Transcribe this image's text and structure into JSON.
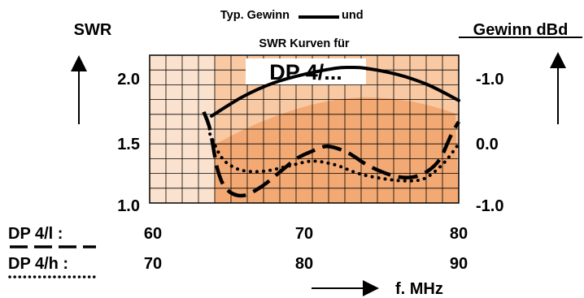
{
  "chart_data": {
    "type": "line",
    "title_line1": "Typ. Gewinn",
    "title_und": "und",
    "title_line2": "SWR Kurven für",
    "model_label": "DP 4/...",
    "y_left_label": "SWR",
    "y_right_label": "Gewinn dBd",
    "x_label": "f. MHz",
    "y_left_ticks": [
      "2.0",
      "1.5",
      "1.0"
    ],
    "y_right_ticks": [
      "-1.0",
      "0.0",
      "-1.0"
    ],
    "x_rows": [
      {
        "name": "DP 4/l  :",
        "ticks": [
          "60",
          "70",
          "80"
        ],
        "style": "dashed"
      },
      {
        "name": "DP 4/h :",
        "ticks": [
          "70",
          "80",
          "90"
        ],
        "style": "dotted"
      }
    ],
    "x_range": [
      60,
      80
    ],
    "ylim_left": [
      1.0,
      2.2
    ],
    "ylim_right": [
      -1.0,
      0.7
    ],
    "series": [
      {
        "style": "solid",
        "axis": "right",
        "x": [
          64,
          66,
          68,
          70,
          72,
          73,
          74,
          76,
          78,
          80
        ],
        "y": [
          0.0,
          0.22,
          0.38,
          0.48,
          0.55,
          0.56,
          0.55,
          0.48,
          0.36,
          0.18
        ]
      },
      {
        "style": "dashed",
        "axis": "left",
        "x": [
          63.5,
          63.9,
          64.4,
          65.0,
          66.0,
          67.2,
          68.5,
          69.5,
          70.5,
          71.5,
          72.8,
          74.2,
          75.8,
          77.0,
          78.0,
          78.8,
          79.5,
          80.0
        ],
        "y": [
          1.74,
          1.6,
          1.27,
          1.11,
          1.06,
          1.13,
          1.26,
          1.36,
          1.42,
          1.46,
          1.41,
          1.3,
          1.22,
          1.21,
          1.26,
          1.36,
          1.55,
          1.66
        ]
      },
      {
        "style": "dotted",
        "axis": "left",
        "x": [
          63.9,
          64.6,
          65.3,
          66.2,
          67.5,
          69.0,
          70.5,
          72.0,
          73.5,
          75.0,
          76.5,
          77.8,
          79.0,
          80.0
        ],
        "y": [
          1.56,
          1.38,
          1.3,
          1.26,
          1.26,
          1.3,
          1.34,
          1.31,
          1.24,
          1.2,
          1.18,
          1.2,
          1.32,
          1.48
        ]
      }
    ]
  }
}
